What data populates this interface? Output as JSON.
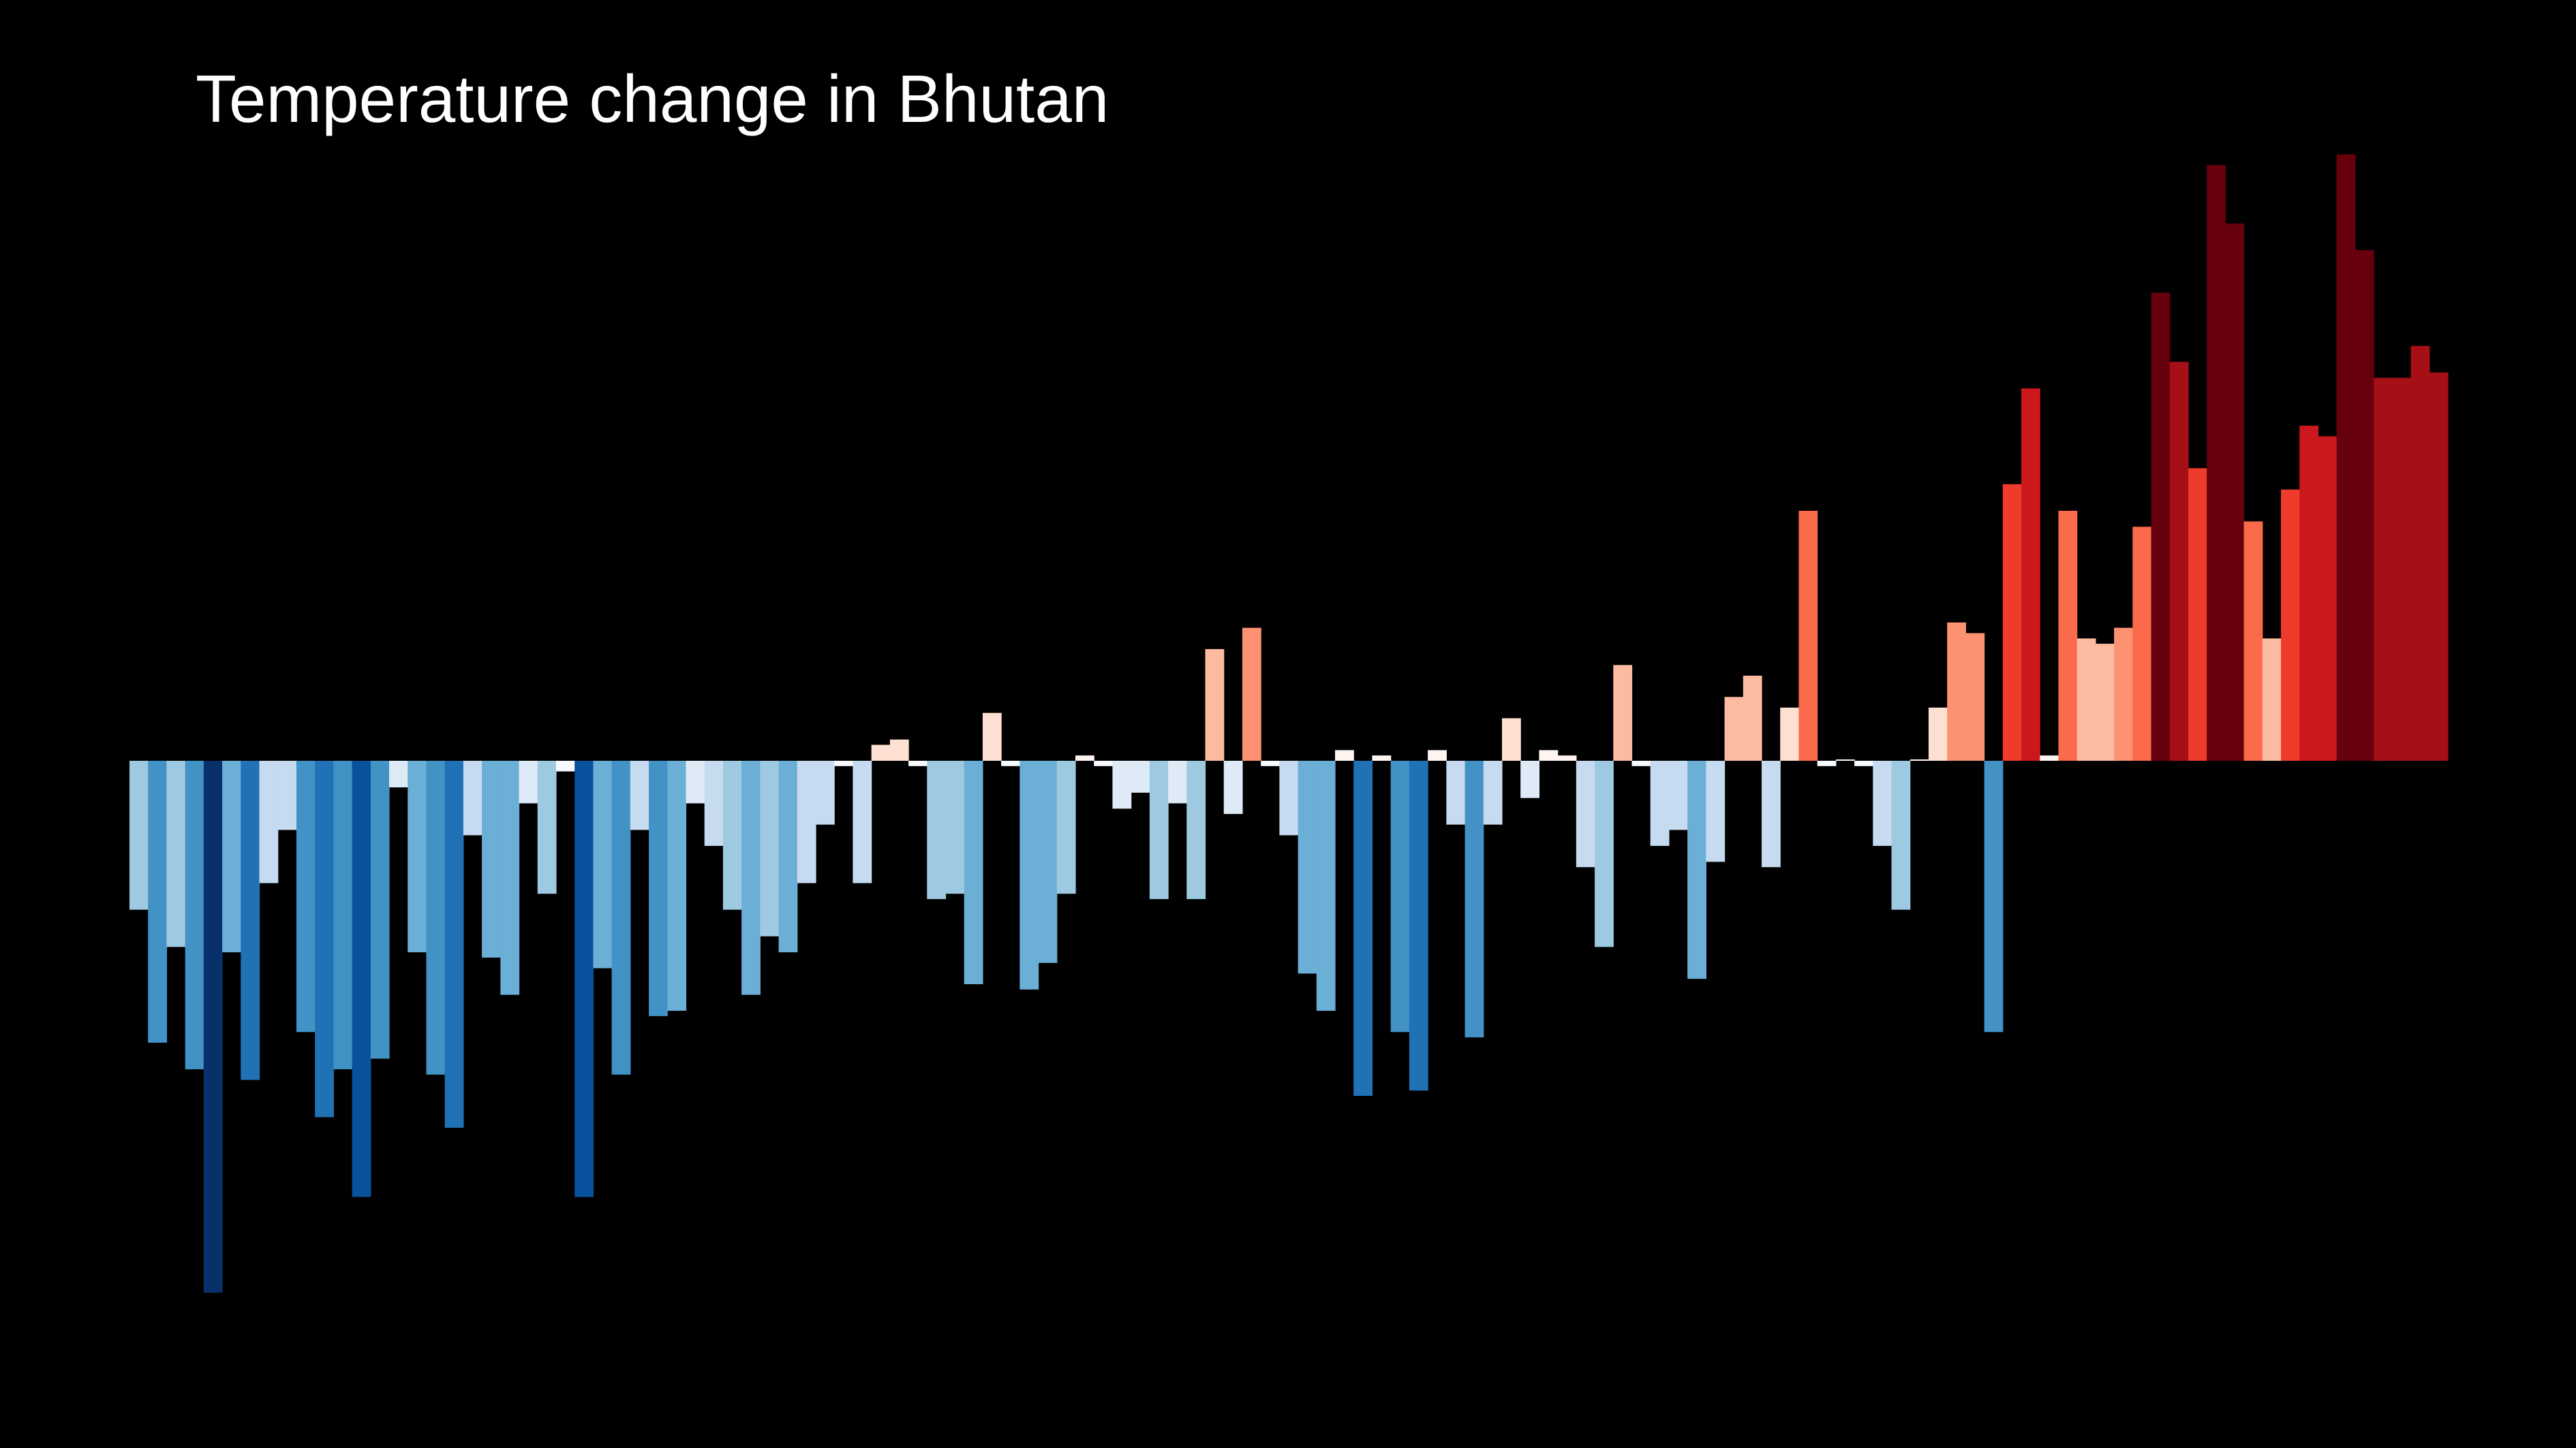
{
  "chart_data": {
    "type": "bar",
    "title": "Temperature change in Bhutan",
    "xlabel": "",
    "ylabel": "",
    "grid": false,
    "legend": "none",
    "colors": {
      "background": "#000000",
      "title": "#ffffff",
      "negative_scale": [
        "#f7fbff",
        "#deebf7",
        "#c6dbef",
        "#9ecae1",
        "#6baed6",
        "#4292c6",
        "#2171b5",
        "#08519c",
        "#08306b"
      ],
      "positive_scale": [
        "#fff5f0",
        "#fee0d2",
        "#fcbba1",
        "#fc9272",
        "#fb6a4a",
        "#ef3b2c",
        "#cb181d",
        "#a50f15",
        "#67000d"
      ]
    },
    "ylim": [
      -1.0,
      1.1
    ],
    "values": [
      -0.28,
      -0.53,
      -0.35,
      -0.58,
      -1.0,
      -0.36,
      -0.6,
      -0.23,
      -0.13,
      -0.51,
      -0.67,
      -0.58,
      -0.82,
      -0.56,
      -0.05,
      -0.36,
      -0.59,
      -0.69,
      -0.14,
      -0.37,
      -0.44,
      -0.08,
      -0.25,
      -0.02,
      -0.82,
      -0.39,
      -0.59,
      -0.13,
      -0.48,
      -0.47,
      -0.08,
      -0.16,
      -0.28,
      -0.44,
      -0.33,
      -0.36,
      -0.23,
      -0.12,
      -0.01,
      -0.23,
      0.03,
      0.04,
      -0.01,
      -0.26,
      -0.25,
      -0.42,
      0.09,
      -0.01,
      -0.43,
      -0.38,
      -0.25,
      0.01,
      -0.01,
      -0.09,
      -0.06,
      -0.26,
      -0.08,
      -0.26,
      0.21,
      -0.1,
      0.25,
      -0.01,
      -0.14,
      -0.4,
      -0.47,
      0.02,
      -0.63,
      0.01,
      -0.51,
      -0.62,
      0.02,
      -0.12,
      -0.52,
      -0.12,
      0.08,
      -0.07,
      0.02,
      0.01,
      -0.2,
      -0.35,
      0.18,
      -0.01,
      -0.16,
      -0.13,
      -0.41,
      -0.19,
      0.12,
      0.16,
      -0.2,
      0.1,
      0.47,
      -0.01,
      0.0,
      -0.01,
      -0.16,
      -0.28,
      0.0,
      0.1,
      0.26,
      0.24,
      -0.51,
      0.52,
      0.7,
      0.01,
      0.47,
      0.23,
      0.22,
      0.25,
      0.44,
      0.88,
      0.75,
      0.55,
      1.12,
      1.01,
      0.45,
      0.23,
      0.51,
      0.63,
      0.61,
      1.14,
      0.96,
      0.72,
      0.72,
      0.78,
      0.73
    ]
  }
}
